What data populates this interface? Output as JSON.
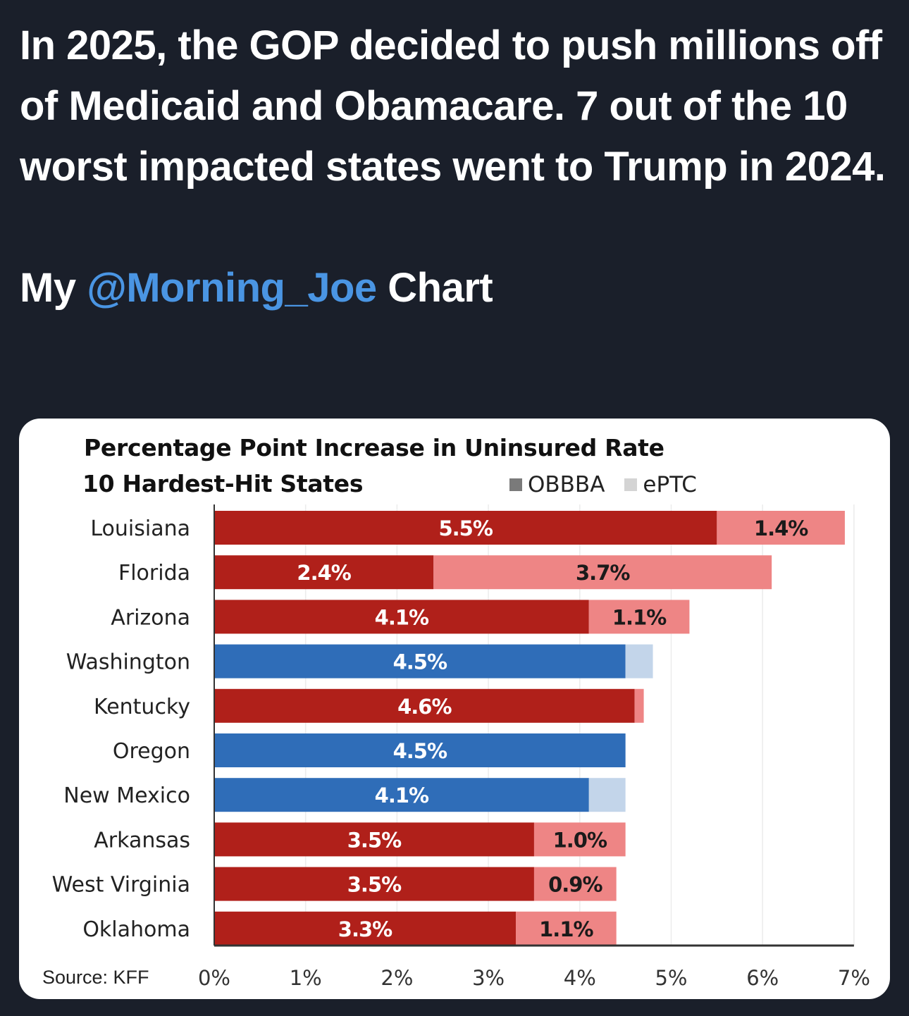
{
  "tweet": {
    "paragraph1": "In 2025, the GOP decided to push millions off of Medicaid and Obamacare. 7 out of the 10 worst impacted states went to Trump in 2024.",
    "paragraph2_prefix": "My ",
    "paragraph2_mention": "@Morning_Joe",
    "paragraph2_suffix": " Chart",
    "mention_color": "#4a95e3"
  },
  "chart_data": {
    "type": "bar",
    "orientation": "horizontal",
    "stacked": true,
    "title": "Percentage Point Increase in Uninsured Rate",
    "subtitle": "10 Hardest-Hit States",
    "xlabel": "",
    "ylabel": "",
    "xlim": [
      0,
      7
    ],
    "x_ticks": [
      0,
      1,
      2,
      3,
      4,
      5,
      6,
      7
    ],
    "x_tick_labels": [
      "0%",
      "1%",
      "2%",
      "3%",
      "4%",
      "5%",
      "6%",
      "7%"
    ],
    "grid": true,
    "legend": {
      "placement": "top-right",
      "entries": [
        {
          "name": "OBBBA",
          "color": "#7a7a7a"
        },
        {
          "name": "ePTC",
          "color": "#d4d4d4"
        }
      ]
    },
    "source": "Source: KFF",
    "categories": [
      "Louisiana",
      "Florida",
      "Arizona",
      "Washington",
      "Kentucky",
      "Oregon",
      "New Mexico",
      "Arkansas",
      "West Virginia",
      "Oklahoma"
    ],
    "party": [
      "R",
      "R",
      "R",
      "D",
      "R",
      "D",
      "D",
      "R",
      "R",
      "R"
    ],
    "party_colors": {
      "R": {
        "OBBBA": "#b0201a",
        "ePTC": "#ee8585"
      },
      "D": {
        "OBBBA": "#2f6db8",
        "ePTC": "#c3d5ea"
      }
    },
    "series": [
      {
        "name": "OBBBA",
        "values": [
          5.5,
          2.4,
          4.1,
          4.5,
          4.6,
          4.5,
          4.1,
          3.5,
          3.5,
          3.3
        ],
        "labels": [
          "5.5%",
          "2.4%",
          "4.1%",
          "4.5%",
          "4.6%",
          "4.5%",
          "4.1%",
          "3.5%",
          "3.5%",
          "3.3%"
        ]
      },
      {
        "name": "ePTC",
        "values": [
          1.4,
          3.7,
          1.1,
          0.3,
          0.1,
          0.0,
          0.4,
          1.0,
          0.9,
          1.1
        ],
        "labels": [
          "1.4%",
          "3.7%",
          "1.1%",
          "",
          "",
          "",
          "",
          "1.0%",
          "0.9%",
          "1.1%"
        ]
      }
    ]
  }
}
